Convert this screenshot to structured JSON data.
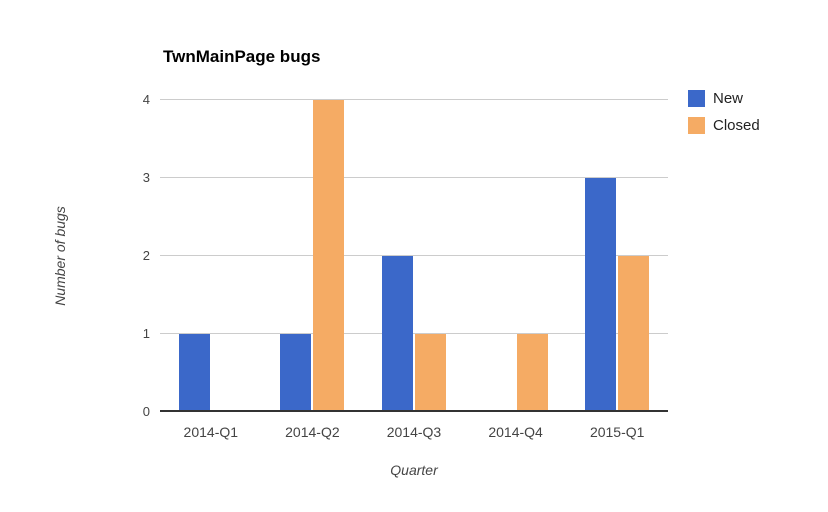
{
  "chart_data": {
    "type": "bar",
    "title": "TwnMainPage bugs",
    "xlabel": "Quarter",
    "ylabel": "Number of bugs",
    "categories": [
      "2014-Q1",
      "2014-Q2",
      "2014-Q3",
      "2014-Q4",
      "2015-Q1"
    ],
    "series": [
      {
        "name": "New",
        "color": "#3b68c9",
        "values": [
          1,
          1,
          2,
          0,
          3
        ]
      },
      {
        "name": "Closed",
        "color": "#f5ab64",
        "values": [
          0,
          4,
          1,
          1,
          2
        ]
      }
    ],
    "ylim": [
      0,
      4
    ],
    "yticks": [
      0,
      1,
      2,
      3,
      4
    ],
    "grid": true,
    "legend_position": "top-right",
    "colors": {
      "background": "#ffffff",
      "gridline": "#cccccc",
      "axis_line": "#333333",
      "tick_text": "#444444",
      "title_text": "#000000",
      "legend_text": "#222222"
    }
  }
}
